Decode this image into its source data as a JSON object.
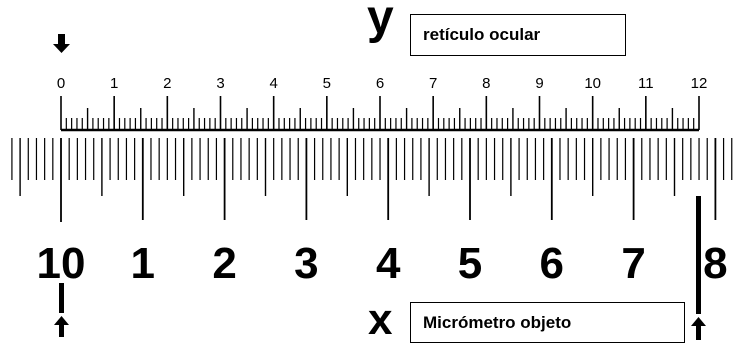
{
  "labels": {
    "y": "y",
    "x": "x",
    "reticulo": "retículo ocular",
    "micrometro": "Micrómetro objeto"
  },
  "ocular_scale": {
    "numbers": [
      "0",
      "1",
      "2",
      "3",
      "4",
      "5",
      "6",
      "7",
      "8",
      "9",
      "10",
      "11",
      "12"
    ]
  },
  "objeto_scale": {
    "numbers": [
      "10",
      "1",
      "2",
      "3",
      "4",
      "5",
      "6",
      "7",
      "8"
    ]
  },
  "colors": {
    "ink": "#000000",
    "background": "#ffffff"
  },
  "icons": {
    "top_marker": "arrow-down-icon",
    "bottom_left_marker": "arrow-up-icon",
    "bottom_right_marker": "arrow-up-icon"
  }
}
